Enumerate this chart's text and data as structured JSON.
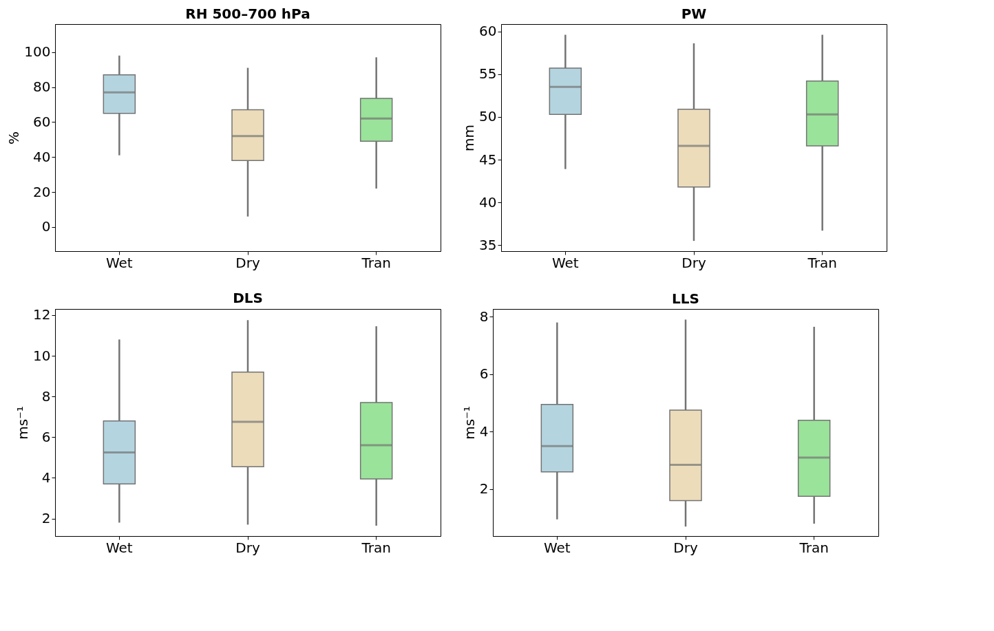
{
  "chart_data": [
    {
      "type": "box",
      "title": "RH 500–700 hPa",
      "ylabel": "%",
      "categories": [
        "Wet",
        "Dry",
        "Tran"
      ],
      "colors": [
        "#b4d5e0",
        "#ecdcba",
        "#9ae39a"
      ],
      "ylim": [
        -13.8,
        116
      ],
      "yticks": [
        0,
        20,
        40,
        60,
        80,
        100
      ],
      "grid": false,
      "boxes": [
        {
          "low": 41,
          "q1": 65,
          "median": 77,
          "q3": 87,
          "high": 98
        },
        {
          "low": 6,
          "q1": 38,
          "median": 52,
          "q3": 67,
          "high": 91
        },
        {
          "low": 22,
          "q1": 49,
          "median": 62,
          "q3": 73.5,
          "high": 97
        }
      ]
    },
    {
      "type": "box",
      "title": "PW",
      "ylabel": "mm",
      "categories": [
        "Wet",
        "Dry",
        "Tran"
      ],
      "colors": [
        "#b4d5e0",
        "#ecdcba",
        "#9ae39a"
      ],
      "ylim": [
        34.3,
        60.85
      ],
      "yticks": [
        35,
        40,
        45,
        50,
        55,
        60
      ],
      "grid": false,
      "boxes": [
        {
          "low": 43.9,
          "q1": 50.3,
          "median": 53.5,
          "q3": 55.7,
          "high": 59.6
        },
        {
          "low": 35.5,
          "q1": 41.8,
          "median": 46.6,
          "q3": 50.9,
          "high": 58.6
        },
        {
          "low": 36.7,
          "q1": 46.6,
          "median": 50.3,
          "q3": 54.2,
          "high": 59.6
        }
      ]
    },
    {
      "type": "box",
      "title": "DLS",
      "ylabel": "ms⁻¹",
      "categories": [
        "Wet",
        "Dry",
        "Tran"
      ],
      "colors": [
        "#b4d5e0",
        "#ecdcba",
        "#9ae39a"
      ],
      "ylim": [
        1.14,
        12.3
      ],
      "yticks": [
        2,
        4,
        6,
        8,
        10,
        12
      ],
      "grid": false,
      "boxes": [
        {
          "low": 1.8,
          "q1": 3.7,
          "median": 5.25,
          "q3": 6.8,
          "high": 10.8
        },
        {
          "low": 1.7,
          "q1": 4.55,
          "median": 6.75,
          "q3": 9.2,
          "high": 11.75
        },
        {
          "low": 1.65,
          "q1": 3.95,
          "median": 5.6,
          "q3": 7.7,
          "high": 11.45
        }
      ]
    },
    {
      "type": "box",
      "title": "LLS",
      "ylabel": "ms⁻¹",
      "categories": [
        "Wet",
        "Dry",
        "Tran"
      ],
      "colors": [
        "#b4d5e0",
        "#ecdcba",
        "#9ae39a"
      ],
      "ylim": [
        0.37,
        8.27
      ],
      "yticks": [
        2,
        4,
        6,
        8
      ],
      "grid": false,
      "boxes": [
        {
          "low": 0.95,
          "q1": 2.6,
          "median": 3.5,
          "q3": 4.95,
          "high": 7.8
        },
        {
          "low": 0.7,
          "q1": 1.6,
          "median": 2.85,
          "q3": 4.75,
          "high": 7.9
        },
        {
          "low": 0.8,
          "q1": 1.75,
          "median": 3.1,
          "q3": 4.4,
          "high": 7.65
        }
      ]
    }
  ]
}
